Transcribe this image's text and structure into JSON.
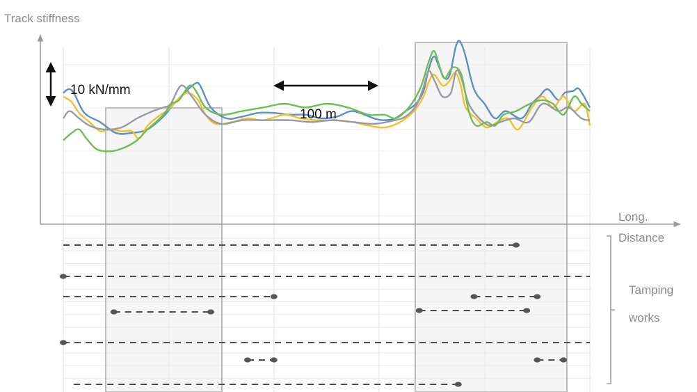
{
  "chart_data": {
    "type": "line",
    "y_axis_label": "Track stiffness",
    "x_axis_label": [
      "Long.",
      "Distance"
    ],
    "scale_bar_y": "10 kN/mm",
    "scale_bar_x": "100 m",
    "side_label": [
      "Tamping",
      "works"
    ],
    "x_range_m": [
      0,
      500
    ],
    "series": [
      {
        "color": "#5b8fc7",
        "points": [
          [
            0,
            72
          ],
          [
            5,
            74
          ],
          [
            10,
            72
          ],
          [
            20,
            61
          ],
          [
            35,
            56
          ],
          [
            50,
            50
          ],
          [
            65,
            50
          ],
          [
            80,
            52
          ],
          [
            95,
            59
          ],
          [
            105,
            66
          ],
          [
            115,
            72
          ],
          [
            125,
            77
          ],
          [
            130,
            76
          ],
          [
            140,
            64
          ],
          [
            155,
            58
          ],
          [
            170,
            59
          ],
          [
            185,
            61
          ],
          [
            200,
            61
          ],
          [
            215,
            60
          ],
          [
            230,
            60
          ],
          [
            245,
            58
          ],
          [
            260,
            59
          ],
          [
            275,
            62
          ],
          [
            295,
            58
          ],
          [
            305,
            57
          ],
          [
            315,
            58
          ],
          [
            325,
            62
          ],
          [
            335,
            66
          ],
          [
            342,
            73
          ],
          [
            347,
            85
          ],
          [
            352,
            92
          ],
          [
            357,
            86
          ],
          [
            362,
            80
          ],
          [
            367,
            82
          ],
          [
            373,
            98
          ],
          [
            377,
            100
          ],
          [
            382,
            92
          ],
          [
            390,
            74
          ],
          [
            400,
            66
          ],
          [
            410,
            58
          ],
          [
            420,
            62
          ],
          [
            435,
            58
          ],
          [
            445,
            66
          ],
          [
            452,
            70
          ],
          [
            460,
            74
          ],
          [
            470,
            68
          ],
          [
            476,
            72
          ],
          [
            484,
            73
          ],
          [
            490,
            74
          ],
          [
            500,
            64
          ]
        ]
      },
      {
        "color": "#f2c12e",
        "points": [
          [
            0,
            70
          ],
          [
            8,
            67
          ],
          [
            15,
            61
          ],
          [
            25,
            56
          ],
          [
            35,
            51
          ],
          [
            45,
            52
          ],
          [
            55,
            51
          ],
          [
            65,
            51
          ],
          [
            72,
            47
          ],
          [
            80,
            54
          ],
          [
            90,
            59
          ],
          [
            100,
            63
          ],
          [
            108,
            68
          ],
          [
            118,
            72
          ],
          [
            128,
            68
          ],
          [
            135,
            60
          ],
          [
            145,
            55
          ],
          [
            160,
            56
          ],
          [
            175,
            58
          ],
          [
            190,
            57
          ],
          [
            210,
            60
          ],
          [
            225,
            58
          ],
          [
            240,
            57
          ],
          [
            260,
            57
          ],
          [
            275,
            56
          ],
          [
            290,
            54
          ],
          [
            305,
            53
          ],
          [
            320,
            56
          ],
          [
            333,
            62
          ],
          [
            342,
            70
          ],
          [
            347,
            78
          ],
          [
            352,
            82
          ],
          [
            360,
            76
          ],
          [
            366,
            78
          ],
          [
            372,
            83
          ],
          [
            377,
            77
          ],
          [
            382,
            64
          ],
          [
            392,
            58
          ],
          [
            402,
            53
          ],
          [
            412,
            56
          ],
          [
            422,
            58
          ],
          [
            432,
            52
          ],
          [
            445,
            64
          ],
          [
            455,
            70
          ],
          [
            465,
            64
          ],
          [
            475,
            70
          ],
          [
            485,
            62
          ],
          [
            495,
            66
          ],
          [
            500,
            54
          ]
        ]
      },
      {
        "color": "#9a9aa6",
        "points": [
          [
            0,
            58
          ],
          [
            6,
            62
          ],
          [
            15,
            58
          ],
          [
            25,
            54
          ],
          [
            38,
            52
          ],
          [
            55,
            53
          ],
          [
            70,
            58
          ],
          [
            85,
            62
          ],
          [
            95,
            64
          ],
          [
            102,
            66
          ],
          [
            112,
            76
          ],
          [
            122,
            70
          ],
          [
            135,
            60
          ],
          [
            150,
            55
          ],
          [
            170,
            57
          ],
          [
            190,
            57
          ],
          [
            215,
            57
          ],
          [
            235,
            56
          ],
          [
            255,
            57
          ],
          [
            275,
            56
          ],
          [
            295,
            55
          ],
          [
            315,
            57
          ],
          [
            325,
            59
          ],
          [
            335,
            65
          ],
          [
            342,
            75
          ],
          [
            347,
            84
          ],
          [
            353,
            78
          ],
          [
            360,
            70
          ],
          [
            368,
            72
          ],
          [
            373,
            84
          ],
          [
            378,
            80
          ],
          [
            385,
            66
          ],
          [
            395,
            58
          ],
          [
            405,
            54
          ],
          [
            415,
            56
          ],
          [
            428,
            58
          ],
          [
            442,
            56
          ],
          [
            455,
            66
          ],
          [
            470,
            62
          ],
          [
            480,
            64
          ],
          [
            492,
            58
          ],
          [
            500,
            57
          ]
        ]
      },
      {
        "color": "#6fbd55",
        "points": [
          [
            0,
            46
          ],
          [
            8,
            50
          ],
          [
            15,
            52
          ],
          [
            22,
            47
          ],
          [
            32,
            41
          ],
          [
            45,
            40
          ],
          [
            58,
            42
          ],
          [
            70,
            46
          ],
          [
            80,
            52
          ],
          [
            88,
            56
          ],
          [
            95,
            60
          ],
          [
            103,
            66
          ],
          [
            110,
            68
          ],
          [
            120,
            76
          ],
          [
            127,
            72
          ],
          [
            135,
            64
          ],
          [
            150,
            60
          ],
          [
            170,
            62
          ],
          [
            190,
            64
          ],
          [
            210,
            66
          ],
          [
            230,
            64
          ],
          [
            250,
            66
          ],
          [
            270,
            64
          ],
          [
            290,
            60
          ],
          [
            305,
            60
          ],
          [
            315,
            58
          ],
          [
            325,
            62
          ],
          [
            333,
            68
          ],
          [
            340,
            76
          ],
          [
            347,
            89
          ],
          [
            352,
            95
          ],
          [
            357,
            87
          ],
          [
            362,
            80
          ],
          [
            370,
            86
          ],
          [
            378,
            82
          ],
          [
            385,
            62
          ],
          [
            392,
            54
          ],
          [
            402,
            56
          ],
          [
            410,
            54
          ],
          [
            418,
            60
          ],
          [
            430,
            62
          ],
          [
            443,
            66
          ],
          [
            455,
            68
          ],
          [
            465,
            66
          ],
          [
            475,
            60
          ],
          [
            485,
            70
          ],
          [
            492,
            66
          ],
          [
            500,
            62
          ]
        ]
      }
    ],
    "tamping_rows": [
      {
        "start_m": 0,
        "end_m": 430,
        "dot_m": 430
      },
      {
        "start_m": 0,
        "end_m": 500,
        "dot_m": 0
      },
      {
        "start_m": 0,
        "end_m": 200,
        "dot_m": 200
      },
      {
        "start_m": 390,
        "end_m": 450,
        "dots_m": [
          390,
          450
        ]
      },
      {
        "start_m": 48,
        "end_m": 140,
        "dots_m": [
          48,
          140
        ]
      },
      {
        "start_m": 338,
        "end_m": 440,
        "dots_m": [
          338,
          440
        ]
      },
      {
        "start_m": 0,
        "end_m": 500,
        "dot_m": 0
      },
      {
        "start_m": 175,
        "end_m": 200,
        "dots_m": [
          175,
          200
        ]
      },
      {
        "start_m": 450,
        "end_m": 475,
        "dots_m": [
          450,
          475
        ]
      },
      {
        "start_m": 10,
        "end_m": 375,
        "dot_m": 375
      }
    ]
  }
}
